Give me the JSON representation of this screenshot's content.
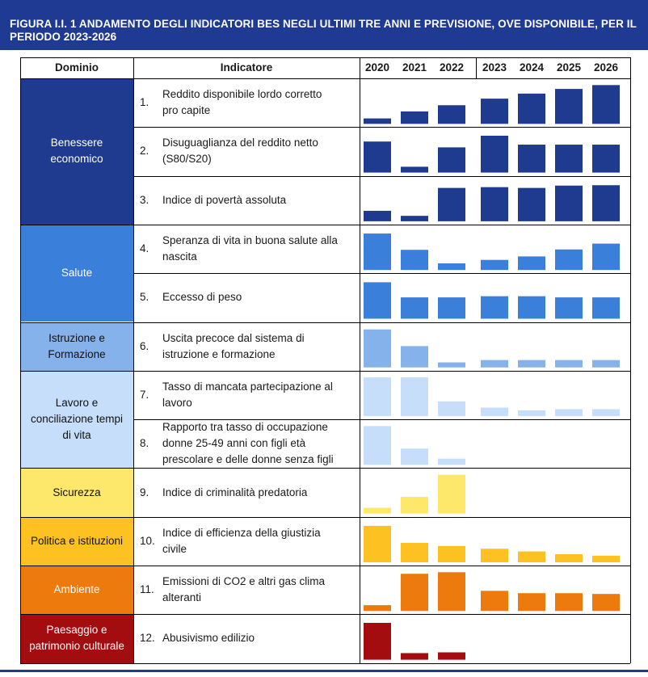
{
  "title": "FIGURA I.I. 1 ANDAMENTO DEGLI INDICATORI BES NEGLI ULTIMI TRE ANNI E PREVISIONE, OVE DISPONIBILE, PER IL PERIODO 2023-2026",
  "headers": {
    "domain": "Dominio",
    "indicator": "Indicatore"
  },
  "colors": {
    "title_bg": "#1f3a93",
    "Benessere economico": "#1e3b8f",
    "Salute": "#3a7fd9",
    "Istruzione e Formazione": "#86b2ec",
    "Lavoro e conciliazione tempi di vita": "#c6defa",
    "Sicurezza": "#fde86b",
    "Politica e istituzioni": "#fdc221",
    "Ambiente": "#ec7a0d",
    "Paesaggio e patrimonio culturale": "#a30d10"
  },
  "chart_data": {
    "type": "bar",
    "title": "FIGURA I.I. 1 ANDAMENTO DEGLI INDICATORI BES NEGLI ULTIMI TRE ANNI E PREVISIONE, OVE DISPONIBILE, PER IL PERIODO 2023-2026",
    "categories": [
      "2020",
      "2021",
      "2022",
      "2023",
      "2024",
      "2025",
      "2026"
    ],
    "domains": [
      {
        "name": "Benessere economico",
        "lines": [
          "Benessere",
          "economico"
        ],
        "rows": 3
      },
      {
        "name": "Salute",
        "lines": [
          "Salute"
        ],
        "rows": 2
      },
      {
        "name": "Istruzione e Formazione",
        "lines": [
          "Istruzione e",
          "Formazione"
        ],
        "rows": 1
      },
      {
        "name": "Lavoro e conciliazione tempi di vita",
        "lines": [
          "Lavoro e",
          "conciliazione tempi",
          "di vita"
        ],
        "rows": 2
      },
      {
        "name": "Sicurezza",
        "lines": [
          "Sicurezza"
        ],
        "rows": 1
      },
      {
        "name": "Politica e istituzioni",
        "lines": [
          "Politica e istituzioni"
        ],
        "rows": 1
      },
      {
        "name": "Ambiente",
        "lines": [
          "Ambiente"
        ],
        "rows": 1
      },
      {
        "name": "Paesaggio e patrimonio culturale",
        "lines": [
          "Paesaggio e",
          "patrimonio culturale"
        ],
        "rows": 1
      }
    ],
    "series": [
      {
        "num": "1.",
        "name": "Reddito disponibile lordo corretto pro capite",
        "lines": [
          "Reddito disponibile lordo corretto",
          "pro capite"
        ],
        "domain": "Benessere economico",
        "values": [
          0.14,
          0.32,
          0.48,
          0.65,
          0.78,
          0.9,
          1.0
        ]
      },
      {
        "num": "2.",
        "name": "Disuguaglianza del reddito netto (S80/S20)",
        "lines": [
          "Disuguaglianza del reddito netto",
          "(S80/S20)"
        ],
        "domain": "Benessere economico",
        "values": [
          0.8,
          0.15,
          0.65,
          0.95,
          0.72,
          0.72,
          0.72
        ]
      },
      {
        "num": "3.",
        "name": "Indice di povertà assoluta",
        "lines": [
          "Indice di povertà assoluta"
        ],
        "domain": "Benessere economico",
        "values": [
          0.27,
          0.14,
          0.86,
          0.88,
          0.86,
          0.92,
          0.93
        ]
      },
      {
        "num": "4.",
        "name": "Speranza di vita in buona salute alla nascita",
        "lines": [
          "Speranza di vita in buona salute alla",
          "nascita"
        ],
        "domain": "Salute",
        "values": [
          0.94,
          0.52,
          0.17,
          0.26,
          0.35,
          0.53,
          0.68
        ]
      },
      {
        "num": "5.",
        "name": "Eccesso di peso",
        "lines": [
          "Eccesso di peso"
        ],
        "domain": "Salute",
        "values": [
          0.94,
          0.55,
          0.55,
          0.58,
          0.58,
          0.55,
          0.55
        ]
      },
      {
        "num": "6.",
        "name": "Uscita precoce dal sistema di istruzione e formazione",
        "lines": [
          "Uscita precoce dal sistema di",
          "istruzione e formazione"
        ],
        "domain": "Istruzione e Formazione",
        "values": [
          0.98,
          0.55,
          0.13,
          0.19,
          0.19,
          0.19,
          0.19
        ]
      },
      {
        "num": "7.",
        "name": "Tasso di mancata partecipazione al lavoro",
        "lines": [
          "Tasso di mancata partecipazione al",
          "lavoro"
        ],
        "domain": "Lavoro e conciliazione tempi di vita",
        "values": [
          1.0,
          1.0,
          0.38,
          0.22,
          0.15,
          0.18,
          0.18
        ]
      },
      {
        "num": "8.",
        "name": "Rapporto tra tasso di occupazione donne 25-49 anni con figli età prescolare e delle donne senza figli",
        "lines": [
          "Rapporto tra tasso di occupazione",
          "donne 25-49 anni con figli età",
          "prescolare e delle donne senza figli"
        ],
        "domain": "Lavoro e conciliazione tempi di vita",
        "values": [
          1.0,
          0.42,
          0.16,
          null,
          null,
          null,
          null
        ]
      },
      {
        "num": "9.",
        "name": "Indice di criminalità predatoria",
        "lines": [
          "Indice di criminalità predatoria"
        ],
        "domain": "Sicurezza",
        "values": [
          0.15,
          0.43,
          1.0,
          null,
          null,
          null,
          null
        ]
      },
      {
        "num": "10.",
        "name": "Indice di efficienza della giustizia civile",
        "lines": [
          "Indice di efficienza della giustizia",
          "civile"
        ],
        "domain": "Politica e istituzioni",
        "values": [
          0.94,
          0.5,
          0.42,
          0.35,
          0.28,
          0.21,
          0.17
        ]
      },
      {
        "num": "11.",
        "name": "Emissioni di CO2 e altri gas clima alteranti",
        "lines": [
          "Emissioni di CO2 e altri gas clima",
          "alteranti"
        ],
        "domain": "Ambiente",
        "values": [
          0.15,
          0.96,
          1.0,
          0.52,
          0.46,
          0.46,
          0.44
        ]
      },
      {
        "num": "12.",
        "name": "Abusivismo edilizio",
        "lines": [
          "Abusivismo edilizio"
        ],
        "domain": "Paesaggio e patrimonio culturale",
        "values": [
          0.95,
          0.17,
          0.19,
          null,
          null,
          null,
          null
        ]
      }
    ]
  }
}
